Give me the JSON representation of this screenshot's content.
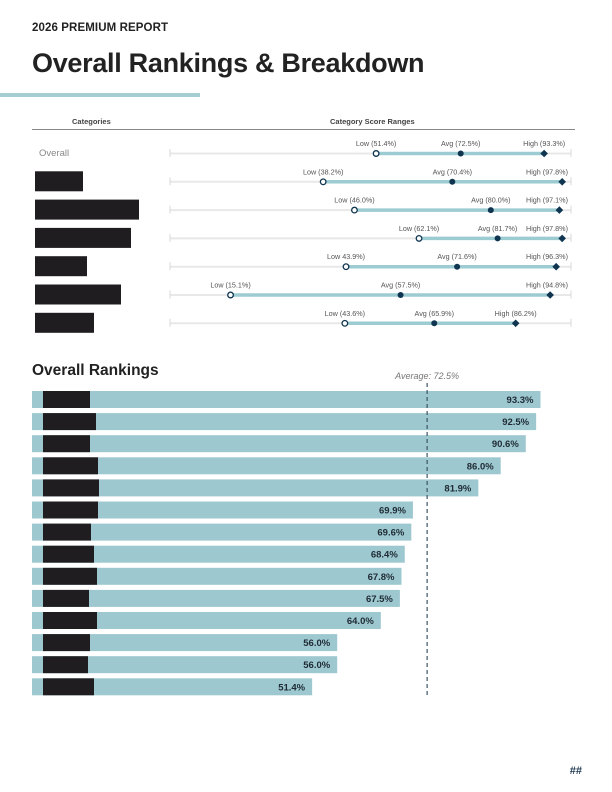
{
  "header": {
    "kicker": "2026 PREMIUM REPORT",
    "title": "Overall Rankings & Breakdown"
  },
  "range_table": {
    "col_categories": "Categories",
    "col_ranges": "Category Score Ranges"
  },
  "rankings_section": {
    "title": "Overall Rankings"
  },
  "footer": {
    "page_number": "##"
  },
  "colors": {
    "accent": "#a6cdd1",
    "bar": "#9dc8d0",
    "marker": "#0f3550",
    "redaction": "#1f1d20"
  },
  "chart_data": [
    {
      "type": "range",
      "title": "Category Score Ranges",
      "xlim": [
        0,
        100
      ],
      "unit": "%",
      "rows": [
        {
          "category": "Overall",
          "redacted": false,
          "low": 51.4,
          "avg": 72.5,
          "high": 93.3,
          "low_label": "Low (51.4%)",
          "avg_label": "Avg (72.5%)",
          "high_label": "High (93.3%)"
        },
        {
          "category": "",
          "redacted": true,
          "low": 38.2,
          "avg": 70.4,
          "high": 97.8,
          "low_label": "Low (38.2%)",
          "avg_label": "Avg (70.4%)",
          "high_label": "High (97.8%)"
        },
        {
          "category": "",
          "redacted": true,
          "low": 46.0,
          "avg": 80.0,
          "high": 97.1,
          "low_label": "Low (46.0%)",
          "avg_label": "Avg (80.0%)",
          "high_label": "High (97.1%)"
        },
        {
          "category": "",
          "redacted": true,
          "low": 62.1,
          "avg": 81.7,
          "high": 97.8,
          "low_label": "Low (62.1%)",
          "avg_label": "Avg (81.7%)",
          "high_label": "High (97.8%)"
        },
        {
          "category": "",
          "redacted": true,
          "low": 43.9,
          "avg": 71.6,
          "high": 96.3,
          "low_label": "Low 43.9%)",
          "avg_label": "Avg (71.6%)",
          "high_label": "High (96.3%)"
        },
        {
          "category": "",
          "redacted": true,
          "low": 15.1,
          "avg": 57.5,
          "high": 94.8,
          "low_label": "Low (15.1%)",
          "avg_label": "Avg (57.5%)",
          "high_label": "High (94.8%)"
        },
        {
          "category": "",
          "redacted": true,
          "low": 43.6,
          "avg": 65.9,
          "high": 86.2,
          "low_label": "Low (43.6%)",
          "avg_label": "Avg (65.9%)",
          "high_label": "High (86.2%)"
        }
      ]
    },
    {
      "type": "bar",
      "orientation": "horizontal",
      "title": "Overall Rankings",
      "xlim": [
        0,
        100
      ],
      "categories": [
        "",
        "",
        "",
        "",
        "",
        "",
        "",
        "",
        "",
        "",
        "",
        "",
        "",
        ""
      ],
      "labels_redacted": true,
      "values": [
        93.3,
        92.5,
        90.6,
        86.0,
        81.9,
        69.9,
        69.6,
        68.4,
        67.8,
        67.5,
        64.0,
        56.0,
        56.0,
        51.4
      ],
      "value_labels": [
        "93.3%",
        "92.5%",
        "90.6%",
        "86.0%",
        "81.9%",
        "69.9%",
        "69.6%",
        "68.4%",
        "67.8%",
        "67.5%",
        "64.0%",
        "56.0%",
        "56.0%",
        "51.4%"
      ],
      "reference_line": {
        "value": 72.5,
        "label": "Average: 72.5%",
        "style": "dashed"
      }
    }
  ]
}
